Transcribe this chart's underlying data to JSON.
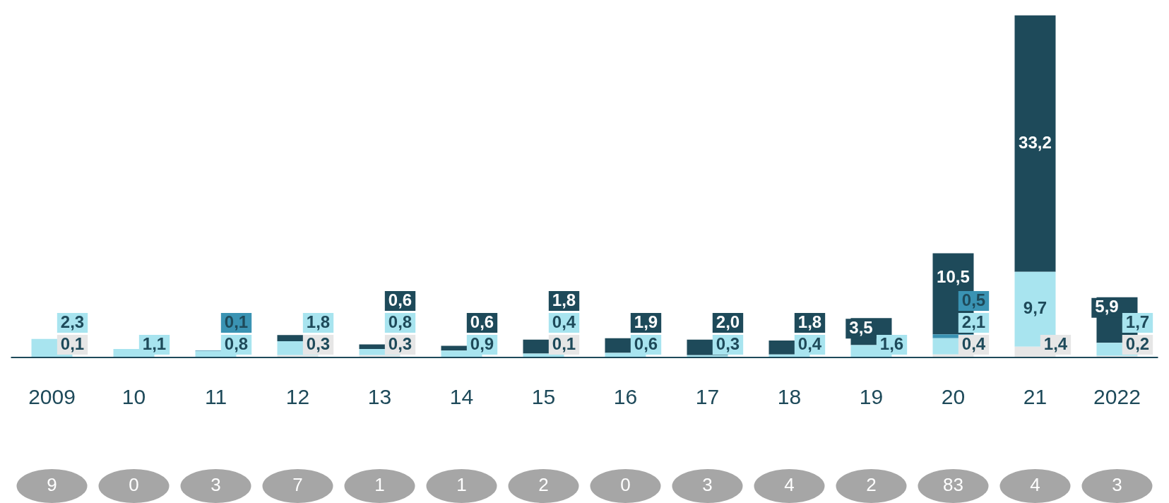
{
  "chart_data": {
    "type": "bar",
    "stacked": true,
    "categories": [
      "2009",
      "10",
      "11",
      "12",
      "13",
      "14",
      "15",
      "16",
      "17",
      "18",
      "19",
      "20",
      "21",
      "2022"
    ],
    "series": [
      {
        "color": "#e6e6e6",
        "values": [
          0.1,
          null,
          null,
          0.3,
          0.3,
          null,
          0.1,
          null,
          null,
          null,
          null,
          0.4,
          1.4,
          0.2
        ],
        "value_labels": [
          "0,1",
          null,
          null,
          "0,3",
          "0,3",
          null,
          "0,1",
          null,
          null,
          null,
          null,
          "0,4",
          "1,4",
          "0,2"
        ]
      },
      {
        "color": "#a8e4ef",
        "values": [
          2.3,
          1.1,
          0.8,
          1.8,
          0.8,
          0.9,
          0.4,
          0.6,
          0.3,
          0.4,
          1.6,
          2.1,
          9.7,
          1.7
        ],
        "value_labels": [
          "2,3",
          "1,1",
          "0,8",
          "1,8",
          "0,8",
          "0,9",
          "0,4",
          "0,6",
          "0,3",
          "0,4",
          "1,6",
          "2,1",
          "9,7",
          "1,7"
        ]
      },
      {
        "color": "#3a93b3",
        "values": [
          null,
          null,
          0.1,
          null,
          null,
          null,
          null,
          null,
          null,
          null,
          null,
          0.5,
          null,
          null
        ],
        "value_labels": [
          null,
          null,
          "0,1",
          null,
          null,
          null,
          null,
          null,
          null,
          null,
          null,
          "0,5",
          null,
          null
        ]
      },
      {
        "color": "#1e4a5a",
        "values": [
          null,
          null,
          null,
          0.8,
          0.6,
          0.6,
          1.8,
          1.9,
          2.0,
          1.8,
          3.5,
          10.5,
          33.2,
          5.9
        ],
        "value_labels": [
          null,
          null,
          null,
          null,
          "0,6",
          "0,6",
          "1,8",
          "1,9",
          "2,0",
          "1,8",
          "3,5",
          "10,5",
          "33,2",
          "5,9"
        ]
      }
    ],
    "tick_labels": "x",
    "grid": false,
    "legend": false,
    "annotations": [
      "9",
      "0",
      "3",
      "7",
      "1",
      "1",
      "2",
      "0",
      "3",
      "4",
      "2",
      "83",
      "4",
      "3"
    ]
  }
}
